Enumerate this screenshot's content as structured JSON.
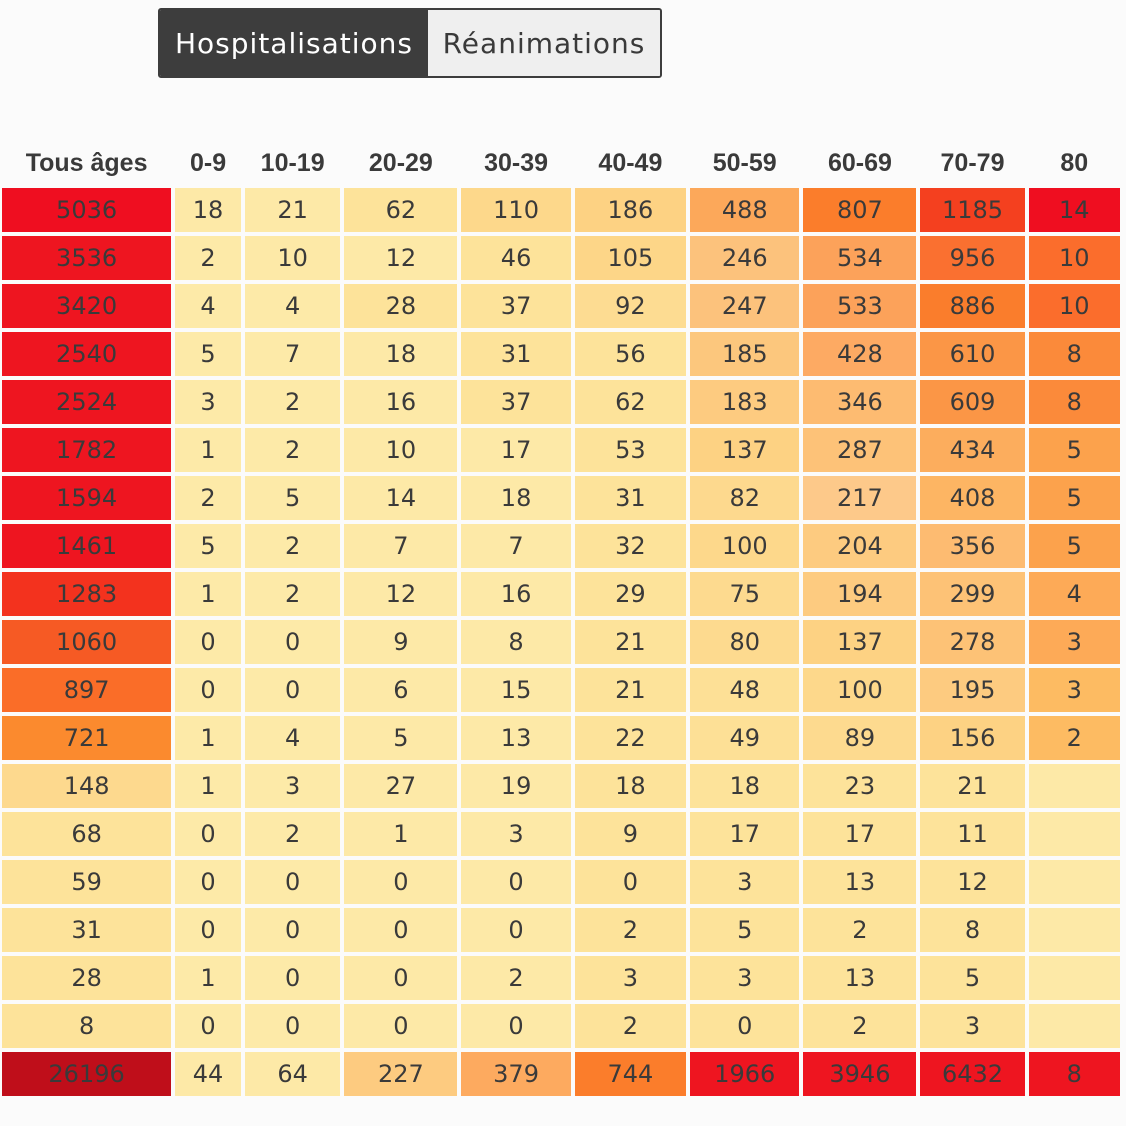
{
  "toggle": {
    "active_label": "Hospitalisations",
    "inactive_label": "Réanimations"
  },
  "chart_data": {
    "type": "heatmap",
    "columns": [
      "Tous âges",
      "0-9",
      "10-19",
      "20-29",
      "30-39",
      "40-49",
      "50-59",
      "60-69",
      "70-79",
      "80"
    ],
    "rows": [
      [
        "5036",
        "18",
        "21",
        "62",
        "110",
        "186",
        "488",
        "807",
        "1185",
        "14"
      ],
      [
        "3536",
        "2",
        "10",
        "12",
        "46",
        "105",
        "246",
        "534",
        "956",
        "10"
      ],
      [
        "3420",
        "4",
        "4",
        "28",
        "37",
        "92",
        "247",
        "533",
        "886",
        "10"
      ],
      [
        "2540",
        "5",
        "7",
        "18",
        "31",
        "56",
        "185",
        "428",
        "610",
        "8"
      ],
      [
        "2524",
        "3",
        "2",
        "16",
        "37",
        "62",
        "183",
        "346",
        "609",
        "8"
      ],
      [
        "1782",
        "1",
        "2",
        "10",
        "17",
        "53",
        "137",
        "287",
        "434",
        "5"
      ],
      [
        "1594",
        "2",
        "5",
        "14",
        "18",
        "31",
        "82",
        "217",
        "408",
        "5"
      ],
      [
        "1461",
        "5",
        "2",
        "7",
        "7",
        "32",
        "100",
        "204",
        "356",
        "5"
      ],
      [
        "1283",
        "1",
        "2",
        "12",
        "16",
        "29",
        "75",
        "194",
        "299",
        "4"
      ],
      [
        "1060",
        "0",
        "0",
        "9",
        "8",
        "21",
        "80",
        "137",
        "278",
        "3"
      ],
      [
        "897",
        "0",
        "0",
        "6",
        "15",
        "21",
        "48",
        "100",
        "195",
        "3"
      ],
      [
        "721",
        "1",
        "4",
        "5",
        "13",
        "22",
        "49",
        "89",
        "156",
        "2"
      ],
      [
        "148",
        "1",
        "3",
        "27",
        "19",
        "18",
        "18",
        "23",
        "21",
        ""
      ],
      [
        "68",
        "0",
        "2",
        "1",
        "3",
        "9",
        "17",
        "17",
        "11",
        ""
      ],
      [
        "59",
        "0",
        "0",
        "0",
        "0",
        "0",
        "3",
        "13",
        "12",
        ""
      ],
      [
        "31",
        "0",
        "0",
        "0",
        "0",
        "2",
        "5",
        "2",
        "8",
        ""
      ],
      [
        "28",
        "1",
        "0",
        "0",
        "2",
        "3",
        "3",
        "13",
        "5",
        ""
      ],
      [
        "8",
        "0",
        "0",
        "0",
        "0",
        "2",
        "0",
        "2",
        "3",
        ""
      ],
      [
        "26196",
        "44",
        "64",
        "227",
        "379",
        "744",
        "1966",
        "3946",
        "6432",
        "8"
      ]
    ],
    "colors": [
      [
        "#ef0e20",
        "#fde9a7",
        "#fde9a7",
        "#fde39a",
        "#fdd88b",
        "#fdd283",
        "#fca85a",
        "#fb7d2b",
        "#f4401f",
        "#ef0e20"
      ],
      [
        "#ee1520",
        "#fdeaa8",
        "#fde9a7",
        "#fde9a7",
        "#fde39a",
        "#fdd688",
        "#fcc27c",
        "#fca25a",
        "#fa7030",
        "#fb6d2c"
      ],
      [
        "#ee1520",
        "#fdeaa8",
        "#fdeaa8",
        "#fde39a",
        "#fde39a",
        "#fddc92",
        "#fcc27c",
        "#fca25a",
        "#fa7d2c",
        "#fb6d2c"
      ],
      [
        "#ee1520",
        "#fdeaa8",
        "#fdeaa8",
        "#fde9a7",
        "#fde39a",
        "#fde39a",
        "#fcc77d",
        "#fdaa63",
        "#fb9646",
        "#fb8a3a"
      ],
      [
        "#ee1520",
        "#fdeaa8",
        "#fdeaa8",
        "#fde9a7",
        "#fde39a",
        "#fde39a",
        "#fdcb80",
        "#fdbb71",
        "#fb9646",
        "#fb8a3a"
      ],
      [
        "#ee1520",
        "#fdeaa8",
        "#fdeaa8",
        "#fde9a7",
        "#fde9a7",
        "#fde39a",
        "#fdd283",
        "#fdc278",
        "#fcad5d",
        "#fca24c"
      ],
      [
        "#ee1520",
        "#fdeaa8",
        "#fdeaa8",
        "#fde9a7",
        "#fde9a7",
        "#fde39a",
        "#fdd98e",
        "#fdc98a",
        "#fdb563",
        "#fca24c"
      ],
      [
        "#ee1520",
        "#fdeaa8",
        "#fdeaa8",
        "#fde9a7",
        "#fde9a7",
        "#fde39a",
        "#fdd88b",
        "#fdcb80",
        "#fdbb71",
        "#fca24c"
      ],
      [
        "#f3321e",
        "#fdeaa8",
        "#fdeaa8",
        "#fde9a7",
        "#fde9a7",
        "#fde39a",
        "#fdda8f",
        "#fdcb80",
        "#fdc276",
        "#fdaa57"
      ],
      [
        "#f65a24",
        "#fdeaa8",
        "#fdeaa8",
        "#fde9a7",
        "#fde9a7",
        "#fde39a",
        "#fdda8f",
        "#fdd283",
        "#fdc276",
        "#fdaa57"
      ],
      [
        "#fa6d28",
        "#fdeaa8",
        "#fdeaa8",
        "#fde9a7",
        "#fde9a7",
        "#fde39a",
        "#fde096",
        "#fdd88b",
        "#fdcb80",
        "#fdbb62"
      ],
      [
        "#fb8a2e",
        "#fdeaa8",
        "#fdeaa8",
        "#fde9a7",
        "#fde9a7",
        "#fde39a",
        "#fde096",
        "#fdda8f",
        "#fdd283",
        "#fdbb62"
      ],
      [
        "#fdd98e",
        "#fdeaa8",
        "#fdeaa8",
        "#fde9a7",
        "#fde9a7",
        "#fde39a",
        "#fde39a",
        "#fde39a",
        "#fde39a",
        "#fde9a7"
      ],
      [
        "#fde39a",
        "#fdeaa8",
        "#fdeaa8",
        "#fde9a7",
        "#fde9a7",
        "#fde39a",
        "#fde39a",
        "#fde39a",
        "#fde39a",
        "#fde9a7"
      ],
      [
        "#fde39a",
        "#fdeaa8",
        "#fdeaa8",
        "#fde9a7",
        "#fde9a7",
        "#fde39a",
        "#fde39a",
        "#fde39a",
        "#fde39a",
        "#fde9a7"
      ],
      [
        "#fde39a",
        "#fdeaa8",
        "#fdeaa8",
        "#fde9a7",
        "#fde9a7",
        "#fde39a",
        "#fde39a",
        "#fde39a",
        "#fde39a",
        "#fde9a7"
      ],
      [
        "#fde39a",
        "#fdeaa8",
        "#fdeaa8",
        "#fde9a7",
        "#fde9a7",
        "#fde39a",
        "#fde39a",
        "#fde39a",
        "#fde39a",
        "#fde9a7"
      ],
      [
        "#fde39a",
        "#fdeaa8",
        "#fdeaa8",
        "#fde9a7",
        "#fde9a7",
        "#fde39a",
        "#fde39a",
        "#fde39a",
        "#fde39a",
        "#fde9a7"
      ],
      [
        "#bf0e1a",
        "#fde9a7",
        "#fde9a7",
        "#fdcb80",
        "#fdaa5f",
        "#fb7d2b",
        "#ee1520",
        "#ee1520",
        "#ee1520",
        "#ee1520"
      ]
    ],
    "colorscale": [
      "#fdeaa8",
      "#fde39a",
      "#fdd283",
      "#fca85a",
      "#fb7d2b",
      "#f4401f",
      "#ee1520",
      "#bf0e1a"
    ]
  }
}
